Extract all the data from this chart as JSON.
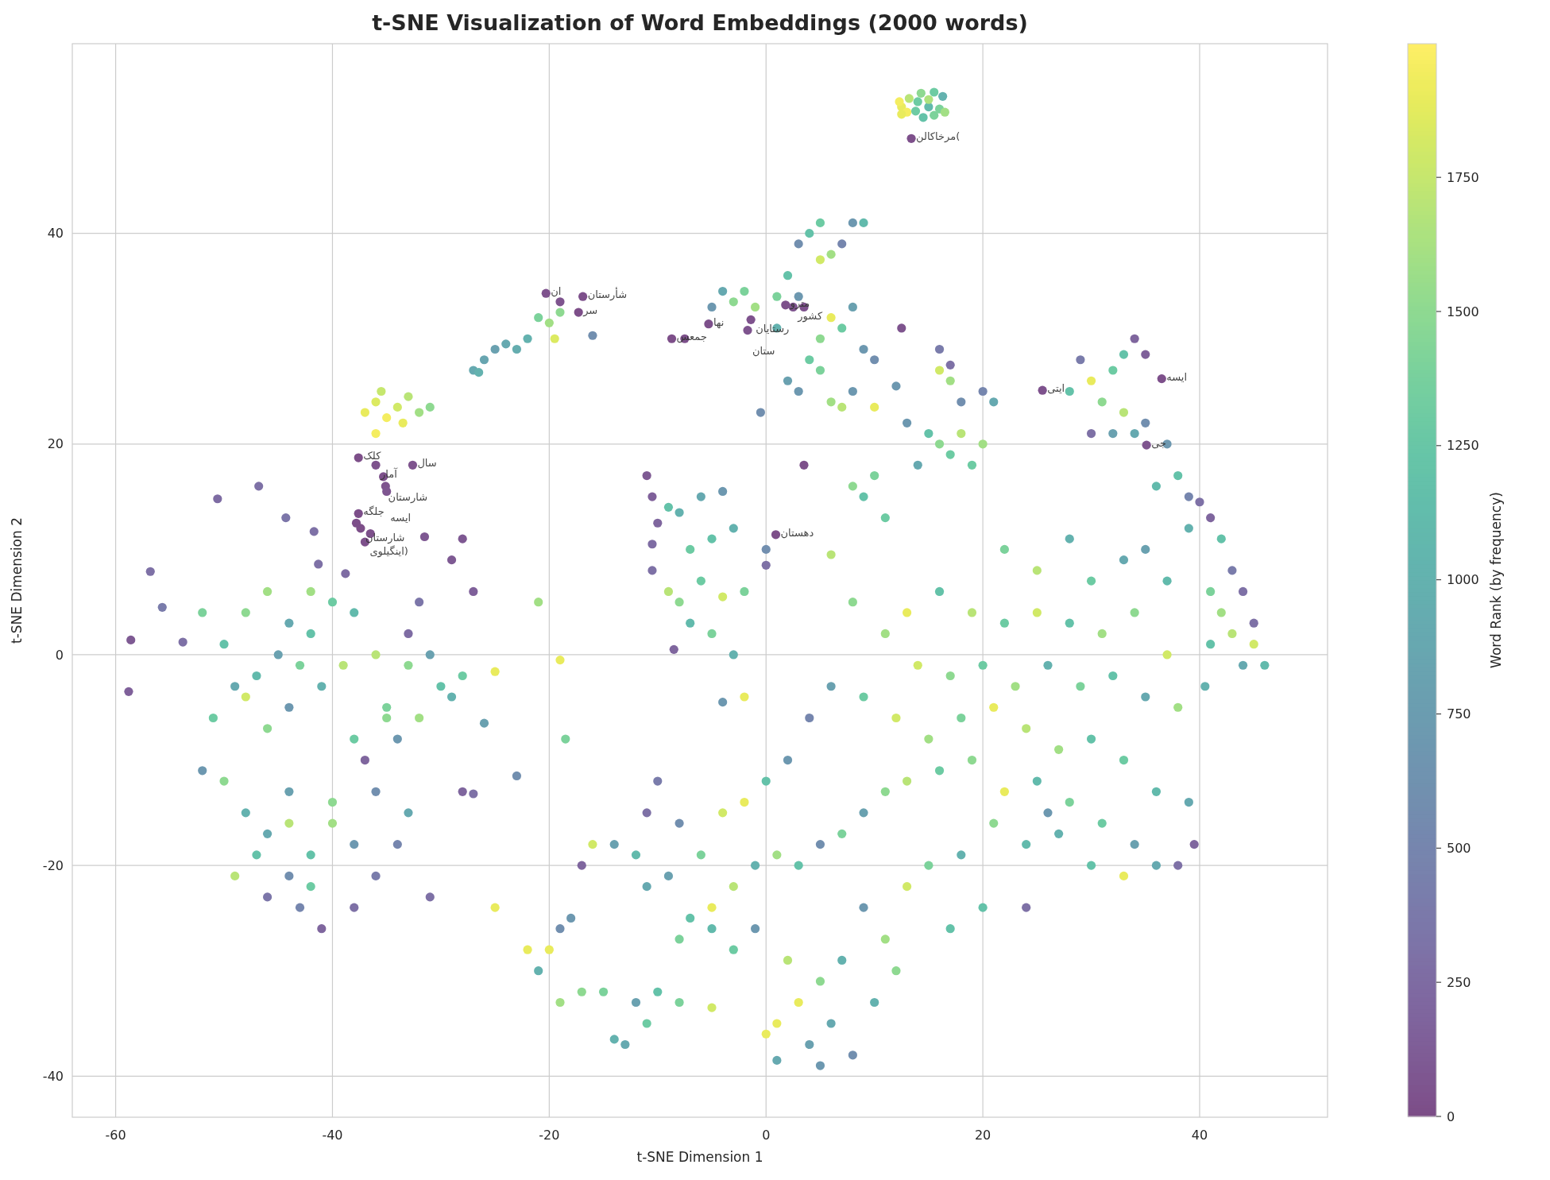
{
  "chart_data": {
    "type": "scatter",
    "title": "t-SNE Visualization of Word Embeddings (2000 words)",
    "xlabel": "t-SNE Dimension 1",
    "ylabel": "t-SNE Dimension 2",
    "clabel": "Word Rank (by frequency)",
    "xlim": [
      -64,
      51.8
    ],
    "ylim": [
      -43.9,
      58
    ],
    "xticks": [
      -60,
      -40,
      -20,
      0,
      20,
      40
    ],
    "yticks": [
      -40,
      -20,
      0,
      20,
      40
    ],
    "clim": [
      0,
      1999
    ],
    "cticks": [
      0,
      250,
      500,
      750,
      1000,
      1250,
      1500,
      1750
    ],
    "grid": true,
    "marker": "circle",
    "x": [
      12.5,
      13,
      14,
      15,
      16,
      14.5,
      13.4,
      -27,
      -26,
      -25,
      -24,
      -23,
      -22,
      -26.5,
      -21,
      -20,
      -19.5,
      -19,
      -16,
      -20.3,
      -16.9,
      -17.3,
      -19,
      -37,
      -36,
      -35,
      -34,
      -33,
      -32,
      -31,
      -36,
      -35.5,
      -33.5,
      -37.6,
      -36,
      -32.6,
      -35.3,
      -35.1,
      -35,
      -37.6,
      -37.4,
      -37,
      -37.8,
      -36.5,
      -31.5,
      -58.8,
      -56.8,
      -55.7,
      -58.6,
      -53.8,
      -50.6,
      -46.8,
      -44.3,
      -41.7,
      -41.3,
      -38.8,
      -48,
      -46,
      -44,
      -42,
      -40,
      -45,
      -47,
      -43,
      -50,
      -49,
      -51,
      -46,
      -41,
      -39,
      -44,
      -52,
      -48,
      -42,
      -38,
      -36,
      -35,
      -33,
      -32,
      -30,
      -28,
      -29,
      -34,
      -37,
      -33,
      -32,
      -31,
      -38,
      -35,
      -48,
      -46,
      -44,
      -42,
      -40,
      -44,
      -46,
      -43,
      -41,
      -38,
      -36,
      -38,
      -49,
      -50,
      -52,
      -34,
      -33,
      -31,
      -40,
      -44,
      -47,
      -36,
      -42,
      -28,
      -27,
      -25,
      -25,
      -27,
      -29,
      -28,
      -26,
      -23,
      -21,
      -19,
      -18.5,
      -11,
      -10.5,
      -10,
      -10.5,
      -9,
      -8,
      -6,
      -4,
      -7,
      -5,
      -3,
      -2,
      -4,
      -6,
      -8,
      -9,
      -7,
      -5,
      -3,
      -8.5,
      -10.5,
      -2,
      -4,
      0,
      0,
      0.9,
      4,
      5,
      6,
      5,
      8,
      9,
      3,
      7,
      2,
      1,
      3,
      1.8,
      2.5,
      3.5,
      6,
      5,
      7,
      8,
      9,
      10,
      4,
      2,
      3,
      5,
      6,
      7,
      8,
      1,
      -1,
      -3,
      -4,
      -5,
      -2,
      -5.3,
      -1.4,
      -1.7,
      -8.7,
      -7.5,
      -0.5,
      12.5,
      3.5,
      10,
      12,
      30,
      32,
      33,
      34,
      35,
      31,
      33,
      34,
      35,
      29,
      30,
      28,
      32,
      36.5,
      25.5,
      35.1,
      37,
      38,
      39,
      36,
      13,
      15,
      16,
      17,
      18,
      20,
      18,
      21,
      16,
      17,
      19,
      14,
      10,
      9,
      11,
      8,
      16,
      17,
      20,
      40,
      41,
      42,
      43,
      44,
      41,
      42,
      43,
      45,
      46,
      41,
      44,
      45,
      39,
      40.5,
      22,
      25,
      28,
      30,
      33,
      35,
      37,
      37,
      34,
      31,
      28,
      25,
      22,
      19,
      16,
      13,
      11,
      8,
      6,
      14,
      17,
      20,
      23,
      26,
      29,
      32,
      35,
      38,
      39,
      36,
      33,
      30,
      27,
      24,
      21,
      18,
      15,
      12,
      9,
      6,
      4,
      2,
      0,
      -2,
      -4,
      -6,
      -8,
      -10,
      -11,
      -11,
      -9,
      -7,
      -5,
      -3,
      -1,
      1,
      3,
      5,
      7,
      9,
      11,
      13,
      16,
      19,
      22,
      25,
      28,
      31,
      34,
      36,
      33,
      30,
      27,
      24,
      21,
      18,
      15,
      13,
      17,
      11,
      9,
      7,
      5,
      3,
      6,
      4,
      8,
      1,
      2,
      -1,
      -3,
      -5,
      -8,
      -5,
      0,
      1,
      5,
      10,
      12,
      20,
      24,
      26,
      38,
      39.5,
      -12,
      -13,
      -14,
      -11,
      -10,
      -15,
      -17,
      -19,
      -20,
      -22,
      -21,
      -19,
      -18,
      -17,
      -16,
      -14,
      -12,
      -8,
      12.3,
      12.5,
      13.2,
      14.3,
      15.5,
      16.3,
      15.5,
      16.5,
      13.8,
      15
    ],
    "values": [
      52,
      51.5,
      52.5,
      52,
      51.8,
      51,
      49,
      27,
      28,
      29,
      29.5,
      29,
      30,
      26.8,
      32,
      31.5,
      30,
      32.5,
      30.3,
      34.3,
      34,
      32.5,
      33.5,
      23,
      24,
      22.5,
      23.5,
      24.5,
      23,
      23.5,
      21,
      25,
      22,
      18.7,
      18,
      18,
      16.9,
      16,
      15.5,
      13.4,
      12,
      10.7,
      12.5,
      11.5,
      11.2,
      -3.5,
      7.9,
      4.5,
      1.4,
      1.2,
      14.8,
      16,
      13,
      11.7,
      8.6,
      7.7,
      4,
      6,
      3,
      2,
      5,
      0,
      -2,
      -1,
      1,
      -3,
      -6,
      -7,
      -3,
      -1,
      -5,
      4,
      -4,
      6,
      4,
      0,
      -5,
      -1,
      -6,
      -3,
      -2,
      -4,
      -8,
      -10,
      2,
      5,
      0,
      -8,
      -6,
      -15,
      -17,
      -16,
      -19,
      -16,
      -21,
      -23,
      -24,
      -26,
      -24,
      -21,
      -18,
      -21,
      -12,
      -11,
      -18,
      -15,
      -23,
      -14,
      -13,
      -19,
      -13,
      -22,
      -13,
      -13.2,
      -24,
      -1.6,
      6,
      9,
      11,
      -6.5,
      -11.5,
      5,
      -0.5,
      -8,
      17,
      15,
      12.5,
      10.5,
      14,
      13.5,
      15,
      15.5,
      10,
      11,
      12,
      6,
      5.5,
      7,
      5,
      6,
      3,
      2,
      0,
      0.5,
      8,
      -4,
      -4.5,
      10,
      8.5,
      11.4,
      40,
      41,
      38,
      37.5,
      41,
      41,
      39,
      39,
      36,
      34,
      34,
      33.2,
      33,
      33,
      32,
      30,
      31,
      33,
      29,
      28,
      28,
      26,
      25,
      27,
      24,
      23.5,
      25,
      31,
      33,
      33.5,
      34.5,
      33,
      34.5,
      31.4,
      31.8,
      30.8,
      30,
      30,
      23,
      31,
      18,
      23.5,
      25.5,
      26,
      27,
      28.5,
      30,
      28.5,
      24,
      23,
      21,
      22,
      28,
      21,
      25,
      21,
      26.2,
      25.1,
      19.9,
      20,
      17,
      15,
      16,
      22,
      21,
      20,
      19,
      21,
      20,
      24,
      24,
      27,
      26,
      18,
      18,
      17,
      15,
      13,
      16,
      29,
      27.5,
      25,
      14.5,
      13,
      11,
      8,
      6,
      6,
      4,
      2,
      1,
      -1,
      1,
      -1,
      3,
      12,
      -3,
      10,
      8,
      11,
      7,
      9,
      10,
      7,
      0,
      4,
      2,
      3,
      4,
      3,
      4,
      6,
      4,
      2,
      5,
      9.5,
      -1,
      -2,
      -1,
      -3,
      -1,
      -3,
      -2,
      -4,
      -5,
      -14,
      -13,
      -10,
      -8,
      -9,
      -7,
      -5,
      -6,
      -8,
      -6,
      -4,
      -3,
      -6,
      -10,
      -12,
      -14,
      -15,
      -19,
      -16,
      -12,
      -15,
      -22,
      -21,
      -25,
      -24,
      -22,
      -20,
      -19,
      -20,
      -18,
      -17,
      -15,
      -13,
      -12,
      -11,
      -10,
      -13,
      -12,
      -14,
      -16,
      -18,
      -20,
      -21,
      -20,
      -17,
      -18,
      -16,
      -19,
      -20,
      -22,
      -26,
      -27,
      -24,
      -29,
      -31,
      -33,
      -35,
      -37,
      -38,
      -35,
      -29,
      -26,
      -28,
      -26,
      -33,
      -33.5,
      -36,
      -38.5,
      -39,
      -33,
      -30,
      -24,
      -24,
      -15,
      -20,
      -18,
      -33,
      -37,
      -36.5,
      -35,
      -32,
      -32,
      -32,
      -33,
      -28,
      -28,
      -30,
      -26,
      -25,
      -20,
      -18,
      -18,
      -19,
      -27,
      52.5,
      51.3,
      52.8,
      53.3,
      53.4,
      53,
      51.2,
      51.5,
      51.6,
      52.7
    ],
    "cvalues": [
      1900,
      1950,
      1300,
      1100,
      1400,
      1200,
      30,
      900,
      850,
      800,
      900,
      950,
      1000,
      1000,
      1400,
      1600,
      1850,
      1500,
      600,
      40,
      30,
      20,
      60,
      1900,
      1850,
      1950,
      1800,
      1700,
      1600,
      1500,
      1950,
      1750,
      1900,
      20,
      40,
      60,
      30,
      50,
      70,
      10,
      20,
      30,
      15,
      25,
      80,
      150,
      300,
      400,
      100,
      300,
      250,
      300,
      350,
      300,
      300,
      250,
      1500,
      1600,
      900,
      1200,
      1300,
      800,
      1100,
      1400,
      1200,
      900,
      1300,
      1500,
      1000,
      1700,
      700,
      1400,
      1800,
      1600,
      1100,
      1700,
      1400,
      1500,
      1600,
      1200,
      1300,
      1000,
      700,
      200,
      250,
      350,
      800,
      1300,
      1500,
      1000,
      900,
      1700,
      1200,
      1600,
      600,
      350,
      500,
      200,
      300,
      400,
      700,
      1700,
      1500,
      700,
      500,
      900,
      300,
      1500,
      800,
      1200,
      600,
      1300,
      200,
      300,
      1900,
      1900,
      150,
      100,
      80,
      800,
      600,
      1600,
      1900,
      1400,
      100,
      150,
      200,
      250,
      1200,
      1000,
      900,
      700,
      1300,
      1200,
      1000,
      1400,
      1800,
      1300,
      1500,
      1700,
      1100,
      1400,
      1000,
      200,
      300,
      1900,
      700,
      600,
      300,
      20,
      1200,
      1300,
      1600,
      1800,
      700,
      1100,
      600,
      500,
      1200,
      1400,
      700,
      30,
      50,
      40,
      1900,
      1500,
      1300,
      800,
      700,
      600,
      1300,
      800,
      700,
      1400,
      1600,
      1700,
      700,
      1000,
      1600,
      1500,
      900,
      700,
      1400,
      30,
      40,
      50,
      20,
      30,
      600,
      50,
      30,
      1900,
      700,
      1900,
      1300,
      1200,
      200,
      150,
      1500,
      1700,
      900,
      600,
      400,
      300,
      1200,
      800,
      30,
      40,
      50,
      700,
      1200,
      500,
      1100,
      700,
      1200,
      1500,
      1300,
      1700,
      1600,
      600,
      900,
      1800,
      1600,
      1300,
      900,
      1400,
      1200,
      1300,
      1500,
      400,
      300,
      500,
      300,
      200,
      1200,
      400,
      300,
      1400,
      1600,
      1700,
      1800,
      1100,
      1200,
      900,
      300,
      1000,
      1000,
      1400,
      1700,
      1000,
      1300,
      900,
      800,
      1100,
      1800,
      1500,
      1600,
      1200,
      1800,
      1300,
      1700,
      1200,
      1900,
      1600,
      1500,
      1700,
      1800,
      1500,
      1300,
      1600,
      1000,
      1400,
      1200,
      900,
      1600,
      900,
      1100,
      1300,
      1200,
      1600,
      1700,
      1900,
      1400,
      1600,
      1800,
      1300,
      800,
      500,
      700,
      1200,
      1900,
      1800,
      1400,
      600,
      400,
      300,
      900,
      800,
      1200,
      1900,
      1700,
      1000,
      1600,
      1200,
      600,
      1400,
      800,
      1500,
      1700,
      1300,
      1500,
      1900,
      1100,
      1400,
      1300,
      800,
      900,
      1900,
      1200,
      1000,
      1100,
      1500,
      1000,
      1400,
      1800,
      1200,
      1600,
      700,
      1000,
      1500,
      1900,
      900,
      800,
      600,
      1900,
      1700,
      700,
      1300,
      1100,
      1400,
      1800,
      1900,
      900,
      700,
      1000,
      1500,
      1200,
      300,
      700,
      300,
      200,
      800,
      900,
      1000,
      1300,
      1200,
      1400,
      1500,
      1600,
      1900,
      1900,
      1000,
      600,
      700,
      200,
      1800,
      800,
      1100,
      1400,
      1950,
      1900,
      1700,
      1500,
      1300,
      1000,
      1400,
      1600,
      1300,
      1650
    ],
    "annotations": [
      {
        "text": "مرخاکالن(",
        "x": 13.4,
        "y": 49
      },
      {
        "text": "ان",
        "x": -20.3,
        "y": 34.3
      },
      {
        "text": "شأرستان",
        "x": -16.9,
        "y": 34
      },
      {
        "text": "سر",
        "x": -17.3,
        "y": 32.5
      },
      {
        "text": "مترو",
        "x": 1.8,
        "y": 33.2
      },
      {
        "text": "کشور",
        "x": 2.5,
        "y": 33
      },
      {
        "text": "نها",
        "x": -5.3,
        "y": 31.4
      },
      {
        "text": "رستایان",
        "x": -1.4,
        "y": 31.8
      },
      {
        "text": "ستان",
        "x": -1.7,
        "y": 30.8
      },
      {
        "text": "جمعس",
        "x": -8.7,
        "y": 30
      },
      {
        "text": "کلک",
        "x": -37.6,
        "y": 18.7
      },
      {
        "text": "آمار",
        "x": -36,
        "y": 18
      },
      {
        "text": "سال",
        "x": -32.6,
        "y": 18
      },
      {
        "text": "شارستان",
        "x": -35.3,
        "y": 16.9
      },
      {
        "text": "ایسه",
        "x": -35.1,
        "y": 16
      },
      {
        "text": "جلگه",
        "x": -37.6,
        "y": 13.4
      },
      {
        "text": "شارستان",
        "x": -37.4,
        "y": 12
      },
      {
        "text": "اینگیلوی)",
        "x": -37,
        "y": 10.7
      },
      {
        "text": "دهستان",
        "x": 0.9,
        "y": 11.4
      },
      {
        "text": "ایتی",
        "x": 25.5,
        "y": 25.1
      },
      {
        "text": "ایسه",
        "x": 36.5,
        "y": 26.2
      },
      {
        "text": "جی",
        "x": 35.1,
        "y": 19.9
      }
    ]
  }
}
